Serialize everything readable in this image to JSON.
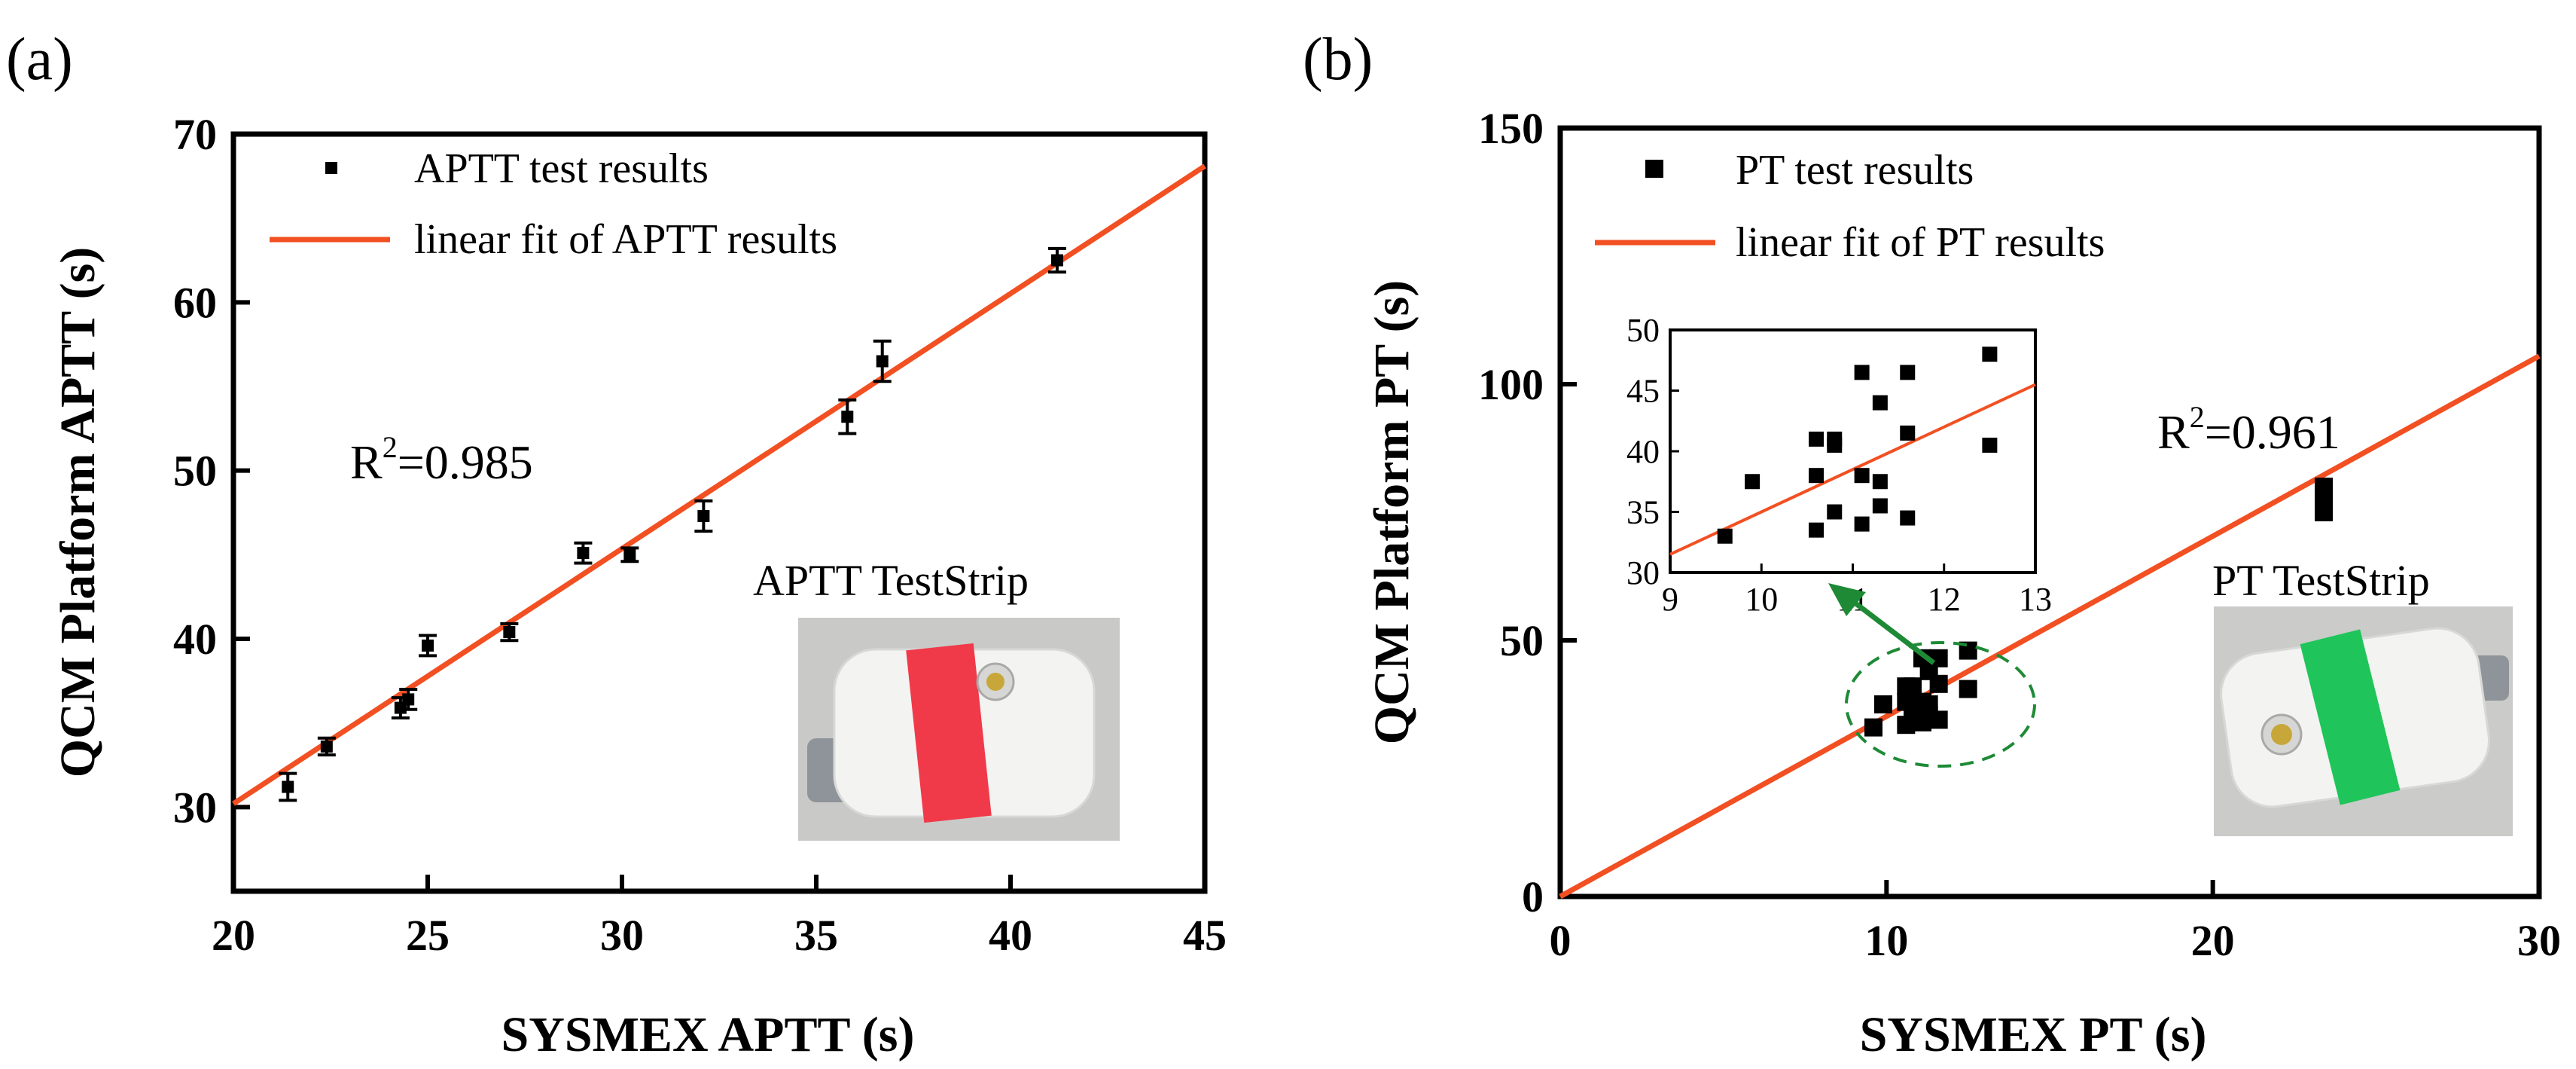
{
  "chart_data": [
    {
      "type": "scatter",
      "panel_label": "(a)",
      "title": "",
      "xlabel": "SYSMEX APTT (s)",
      "ylabel": "QCM Platform APTT (s)",
      "xlim": [
        20,
        45
      ],
      "ylim": [
        25,
        70
      ],
      "x_ticks": [
        20,
        25,
        30,
        35,
        40,
        45
      ],
      "y_ticks": [
        30,
        40,
        50,
        60,
        70
      ],
      "legend": {
        "placement": "top-left",
        "entries": [
          "APTT test results",
          "linear fit of APTT results"
        ]
      },
      "points": [
        {
          "x": 21.4,
          "y": 31.2,
          "err": 0.8
        },
        {
          "x": 22.4,
          "y": 33.6,
          "err": 0.5
        },
        {
          "x": 24.3,
          "y": 35.9,
          "err": 0.6
        },
        {
          "x": 24.5,
          "y": 36.4,
          "err": 0.6
        },
        {
          "x": 25.0,
          "y": 39.6,
          "err": 0.6
        },
        {
          "x": 27.1,
          "y": 40.4,
          "err": 0.5
        },
        {
          "x": 29.0,
          "y": 45.1,
          "err": 0.6
        },
        {
          "x": 30.2,
          "y": 45.0,
          "err": 0.4
        },
        {
          "x": 32.1,
          "y": 47.3,
          "err": 0.9
        },
        {
          "x": 35.8,
          "y": 53.2,
          "err": 1.0
        },
        {
          "x": 36.7,
          "y": 56.5,
          "err": 1.2
        },
        {
          "x": 41.2,
          "y": 62.5,
          "err": 0.7
        }
      ],
      "fit_line": {
        "x": [
          20,
          45
        ],
        "y": [
          30.2,
          68.1
        ]
      },
      "annotation": {
        "prefix": "R",
        "superscript": "2",
        "text": "=0.985"
      },
      "inset_photo_label": "APTT TestStrip",
      "strip_color": "#f03a4a"
    },
    {
      "type": "scatter",
      "panel_label": "(b)",
      "title": "",
      "xlabel": "SYSMEX PT (s)",
      "ylabel": "QCM Platform PT (s)",
      "xlim": [
        0,
        30
      ],
      "ylim": [
        0,
        150
      ],
      "x_ticks": [
        0,
        10,
        20,
        30
      ],
      "y_ticks": [
        0,
        50,
        100,
        150
      ],
      "legend": {
        "placement": "top-left",
        "entries": [
          "PT test results",
          "linear fit of PT results"
        ]
      },
      "points": [
        {
          "x": 9.6,
          "y": 33.0
        },
        {
          "x": 9.9,
          "y": 37.5
        },
        {
          "x": 10.6,
          "y": 33.5
        },
        {
          "x": 10.6,
          "y": 38.0
        },
        {
          "x": 10.6,
          "y": 41.0
        },
        {
          "x": 10.8,
          "y": 35.0
        },
        {
          "x": 10.8,
          "y": 40.5
        },
        {
          "x": 10.8,
          "y": 41.0
        },
        {
          "x": 11.1,
          "y": 34.0
        },
        {
          "x": 11.1,
          "y": 38.0
        },
        {
          "x": 11.1,
          "y": 46.5
        },
        {
          "x": 11.3,
          "y": 35.5
        },
        {
          "x": 11.3,
          "y": 37.5
        },
        {
          "x": 11.3,
          "y": 44.0
        },
        {
          "x": 11.6,
          "y": 34.5
        },
        {
          "x": 11.6,
          "y": 41.5
        },
        {
          "x": 11.6,
          "y": 46.5
        },
        {
          "x": 12.5,
          "y": 40.5
        },
        {
          "x": 12.5,
          "y": 48.0
        },
        {
          "x": 23.4,
          "y": 75.0
        },
        {
          "x": 23.4,
          "y": 78.0
        },
        {
          "x": 23.4,
          "y": 80.0
        }
      ],
      "fit_line": {
        "x": [
          0,
          30
        ],
        "y": [
          0,
          105.5
        ]
      },
      "annotation": {
        "prefix": "R",
        "superscript": "2",
        "text": "=0.961"
      },
      "inset_photo_label": "PT TestStrip",
      "strip_color": "#1fc55a",
      "inset_plot": {
        "xlim": [
          9,
          13
        ],
        "ylim": [
          30,
          50
        ],
        "x_ticks": [
          9,
          10,
          11,
          12,
          13
        ],
        "y_ticks": [
          30,
          35,
          40,
          45,
          50
        ],
        "fit_line": {
          "x": [
            9,
            13
          ],
          "y": [
            31.5,
            45.5
          ]
        }
      }
    }
  ],
  "colors": {
    "fit_line": "#f25022",
    "marker": "#000000",
    "callout": "#1e8a36"
  }
}
